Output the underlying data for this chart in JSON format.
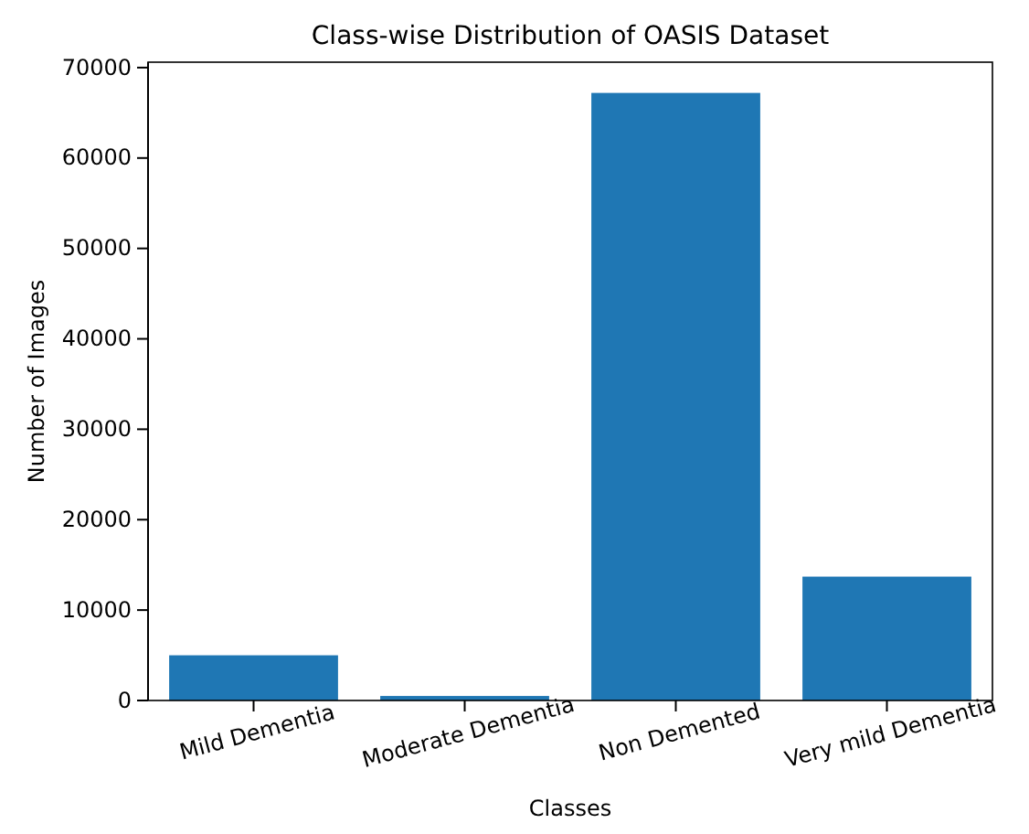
{
  "chart_data": {
    "type": "bar",
    "title": "Class-wise Distribution of OASIS Dataset",
    "xlabel": "Classes",
    "ylabel": "Number of Images",
    "categories": [
      "Mild Dementia",
      "Moderate Dementia",
      "Non Demented",
      "Very mild Dementia"
    ],
    "values": [
      5000,
      500,
      67200,
      13700
    ],
    "color": "#1f77b4",
    "ylim": [
      0,
      70600
    ],
    "yticks": [
      0,
      10000,
      20000,
      30000,
      40000,
      50000,
      60000,
      70000
    ],
    "grid": false
  }
}
